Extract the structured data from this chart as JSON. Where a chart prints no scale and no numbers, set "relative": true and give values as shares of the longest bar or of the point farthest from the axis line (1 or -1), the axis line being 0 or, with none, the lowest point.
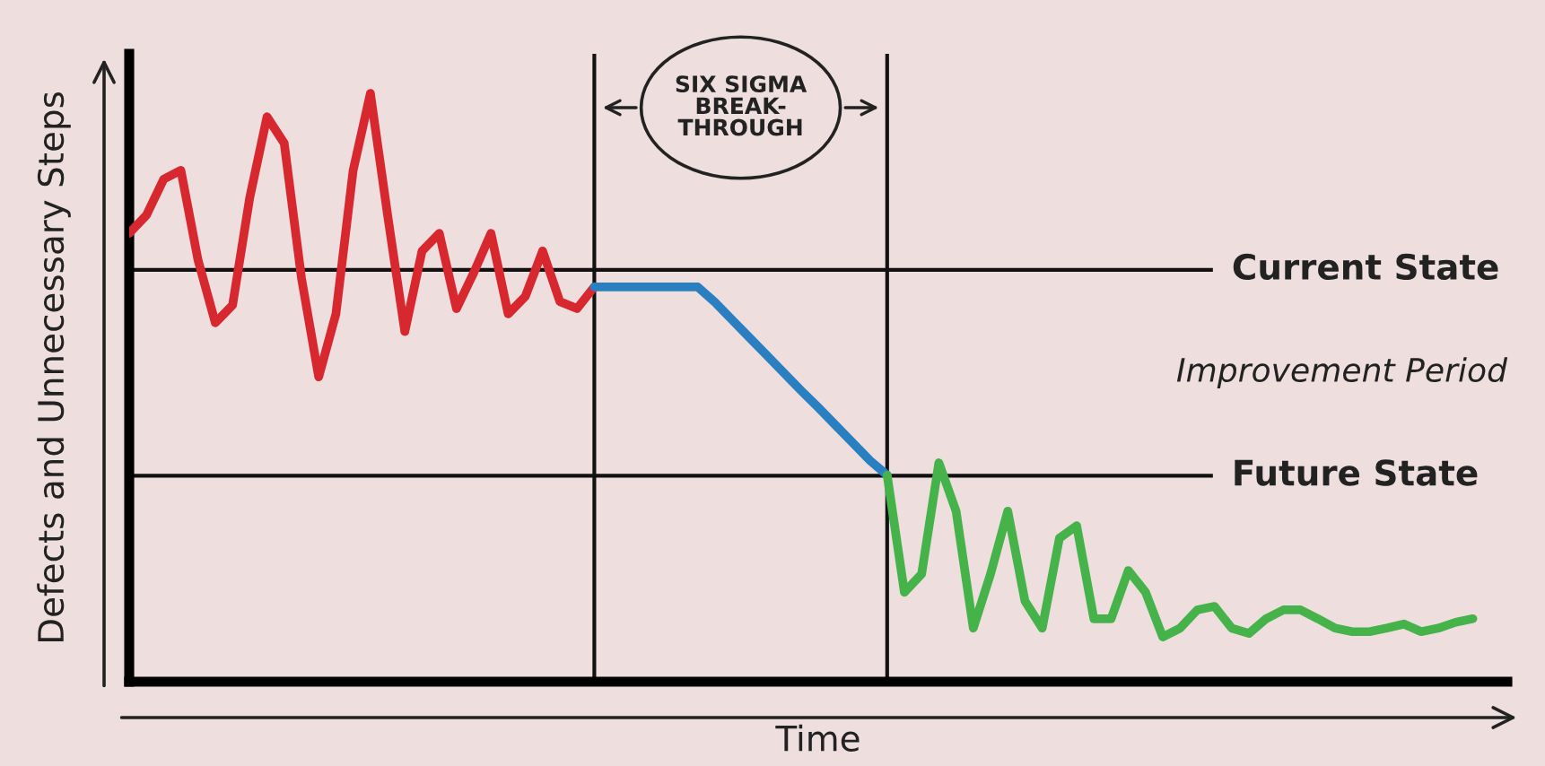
{
  "chart_data": {
    "type": "line",
    "relative": true,
    "xlabel": "Time",
    "ylabel": "Defects and Unnecessary Steps",
    "marker": "none",
    "line_style": "solid",
    "categories": [
      null,
      null,
      null,
      null,
      null,
      null,
      null,
      null,
      null,
      null,
      null,
      null,
      null,
      null,
      null,
      null,
      null,
      null,
      null,
      null,
      null,
      null,
      null,
      null,
      null,
      null,
      null,
      null,
      null,
      null,
      null,
      null,
      null,
      null,
      null,
      null,
      null,
      null,
      null,
      null,
      null,
      null,
      null,
      null,
      null,
      null,
      null,
      null,
      null,
      null,
      null,
      null,
      null,
      null,
      null,
      null,
      null,
      null,
      null,
      null,
      null,
      null,
      null,
      null,
      null,
      null,
      null,
      null,
      null,
      null,
      null,
      null,
      null,
      null,
      null,
      null,
      null,
      null,
      null,
      null,
      null
    ],
    "series": [
      {
        "color": "#d7282f",
        "values": [
          0.762,
          0.793,
          0.854,
          0.869,
          0.716,
          0.61,
          0.64,
          0.823,
          0.96,
          0.915,
          0.686,
          0.518,
          0.625,
          0.869,
          1.0,
          0.793,
          0.595,
          0.732,
          0.762,
          0.634,
          0.695,
          0.762,
          0.625,
          0.655,
          0.732,
          0.646,
          0.634,
          0.671,
          null,
          null,
          null,
          null,
          null,
          null,
          null,
          null,
          null,
          null,
          null,
          null,
          null,
          null,
          null,
          null,
          null,
          null,
          null,
          null,
          null,
          null,
          null,
          null,
          null,
          null,
          null,
          null,
          null,
          null,
          null,
          null,
          null,
          null,
          null,
          null,
          null,
          null,
          null,
          null,
          null,
          null,
          null,
          null,
          null,
          null,
          null,
          null,
          null,
          null,
          null,
          null,
          null
        ]
      },
      {
        "color": "#2a7fc1",
        "values": [
          null,
          null,
          null,
          null,
          null,
          null,
          null,
          null,
          null,
          null,
          null,
          null,
          null,
          null,
          null,
          null,
          null,
          null,
          null,
          null,
          null,
          null,
          null,
          null,
          null,
          null,
          null,
          0.671,
          0.671,
          0.671,
          0.671,
          0.671,
          0.671,
          0.671,
          0.645,
          0.615,
          0.585,
          0.555,
          0.525,
          0.495,
          0.466,
          0.436,
          0.406,
          0.376,
          0.351,
          null,
          null,
          null,
          null,
          null,
          null,
          null,
          null,
          null,
          null,
          null,
          null,
          null,
          null,
          null,
          null,
          null,
          null,
          null,
          null,
          null,
          null,
          null,
          null,
          null,
          null,
          null,
          null,
          null,
          null,
          null,
          null,
          null,
          null,
          null,
          null
        ]
      },
      {
        "color": "#45b34a",
        "values": [
          null,
          null,
          null,
          null,
          null,
          null,
          null,
          null,
          null,
          null,
          null,
          null,
          null,
          null,
          null,
          null,
          null,
          null,
          null,
          null,
          null,
          null,
          null,
          null,
          null,
          null,
          null,
          null,
          null,
          null,
          null,
          null,
          null,
          null,
          null,
          null,
          null,
          null,
          null,
          null,
          null,
          null,
          null,
          null,
          0.351,
          0.152,
          0.183,
          0.372,
          0.29,
          0.091,
          0.183,
          0.29,
          0.137,
          0.091,
          0.244,
          0.265,
          0.107,
          0.107,
          0.189,
          0.152,
          0.076,
          0.091,
          0.122,
          0.128,
          0.091,
          0.082,
          0.107,
          0.122,
          0.122,
          0.107,
          0.091,
          0.085,
          0.085,
          0.091,
          0.098,
          0.085,
          0.091,
          0.101,
          0.107,
          null,
          null
        ]
      }
    ],
    "ref_lines": [
      {
        "axis": "y",
        "value": 0.7,
        "label": "Current State",
        "color": "#111111"
      },
      {
        "axis": "y",
        "value": 0.35,
        "label": "Future State",
        "color": "#111111"
      }
    ],
    "annotations": [
      "SIX SIGMA\nBREAK-\nTHROUGH",
      "Improvement Period"
    ]
  }
}
